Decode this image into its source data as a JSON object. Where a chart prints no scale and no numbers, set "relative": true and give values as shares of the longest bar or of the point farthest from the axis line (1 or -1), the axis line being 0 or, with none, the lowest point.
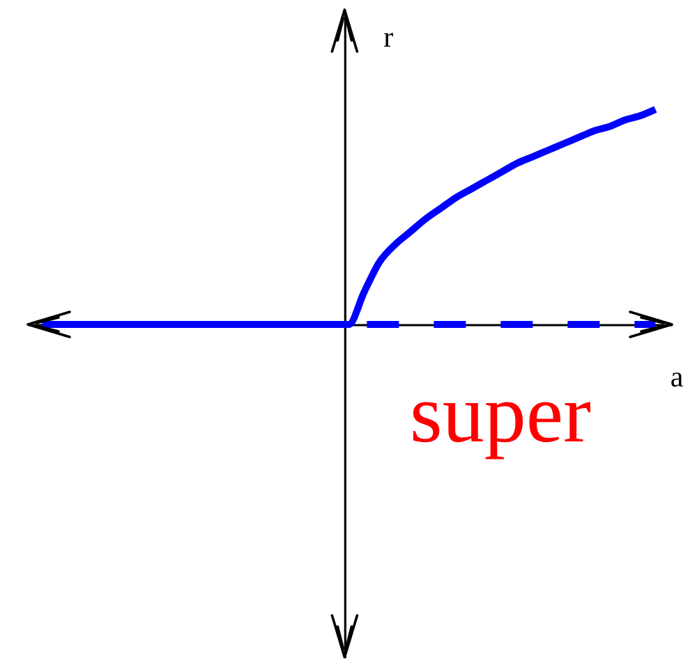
{
  "chart_data": {
    "type": "line",
    "relative": true,
    "xlabel": "a",
    "ylabel": "r",
    "annotations": [
      "super"
    ],
    "categories": [
      null,
      null,
      null,
      null,
      null,
      null,
      null,
      null,
      null,
      null,
      null,
      null,
      null,
      null,
      null,
      null,
      null,
      null,
      null,
      null,
      null,
      null,
      null,
      null,
      null,
      null,
      null,
      null,
      null,
      null,
      null,
      null,
      null,
      null,
      null,
      null,
      null,
      null,
      null,
      null,
      null
    ],
    "series": [
      {
        "color": "#0000ff",
        "line_style": "solid",
        "values": [
          0,
          0,
          0,
          0,
          0,
          0,
          0,
          0,
          0,
          0,
          0,
          0,
          0,
          0,
          0,
          0,
          0,
          0,
          0,
          0,
          0,
          0.15,
          0.29,
          0.37,
          0.43,
          0.49,
          0.54,
          0.59,
          0.63,
          0.67,
          0.71,
          0.75,
          0.78,
          0.81,
          0.84,
          0.87,
          0.9,
          0.92,
          0.95,
          0.97,
          1
        ]
      },
      {
        "color": "#0000ff",
        "line_style": "dashed",
        "values": [
          null,
          null,
          null,
          null,
          null,
          null,
          null,
          null,
          null,
          null,
          null,
          null,
          null,
          null,
          null,
          null,
          null,
          null,
          null,
          null,
          0,
          0,
          0,
          0,
          0,
          0,
          0,
          0,
          0,
          0,
          0,
          0,
          0,
          0,
          0,
          0,
          0,
          0,
          0,
          0,
          0
        ]
      }
    ],
    "grid": false,
    "marker": "none",
    "tick_labels": false
  }
}
